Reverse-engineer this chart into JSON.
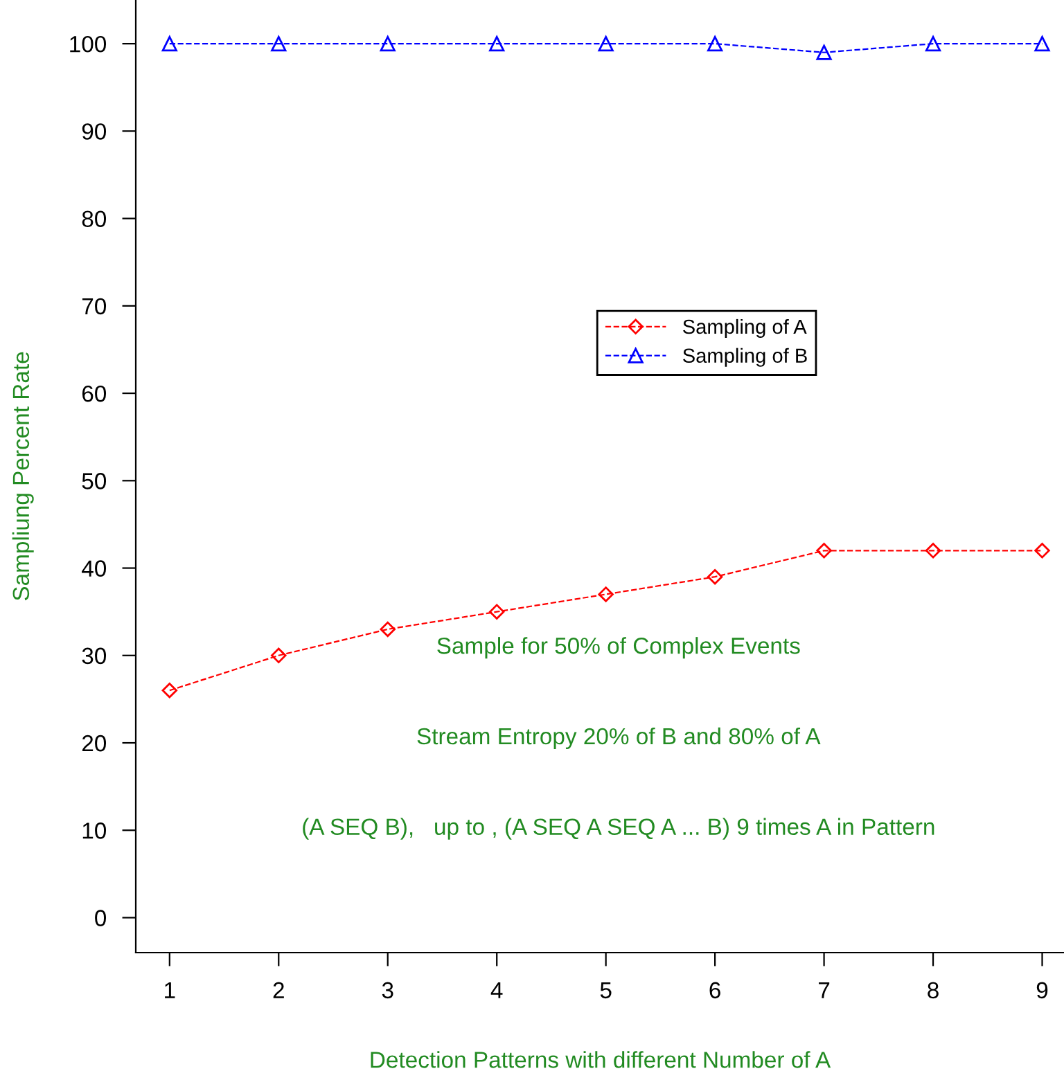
{
  "chart_data": {
    "type": "line",
    "xlabel": "Detection Patterns with different Number of A",
    "ylabel": "Sampliung Percent Rate",
    "x": [
      1,
      2,
      3,
      4,
      5,
      6,
      7,
      8,
      9
    ],
    "series": [
      {
        "name": "Sampling of A",
        "color": "#ff0000",
        "marker": "diamond",
        "values": [
          26,
          30,
          33,
          35,
          37,
          39,
          42,
          42,
          42
        ]
      },
      {
        "name": "Sampling of B",
        "color": "#0000ff",
        "marker": "triangle",
        "values": [
          100,
          100,
          100,
          100,
          100,
          100,
          99,
          100,
          100
        ]
      }
    ],
    "line_style": "dashed",
    "xlim": [
      0.69,
      9.2
    ],
    "ylim": [
      -4,
      105
    ],
    "xticks": [
      1,
      2,
      3,
      4,
      5,
      6,
      7,
      8,
      9
    ],
    "yticks": [
      0,
      10,
      20,
      30,
      40,
      50,
      60,
      70,
      80,
      90,
      100
    ],
    "grid": false,
    "legend": "center",
    "annotations": [
      "Sample for 50% of Complex Events",
      "Stream Entropy 20% of B and 80% of A",
      "(A SEQ B),   up to , (A SEQ A SEQ A ... B) 9 times A in Pattern"
    ]
  }
}
